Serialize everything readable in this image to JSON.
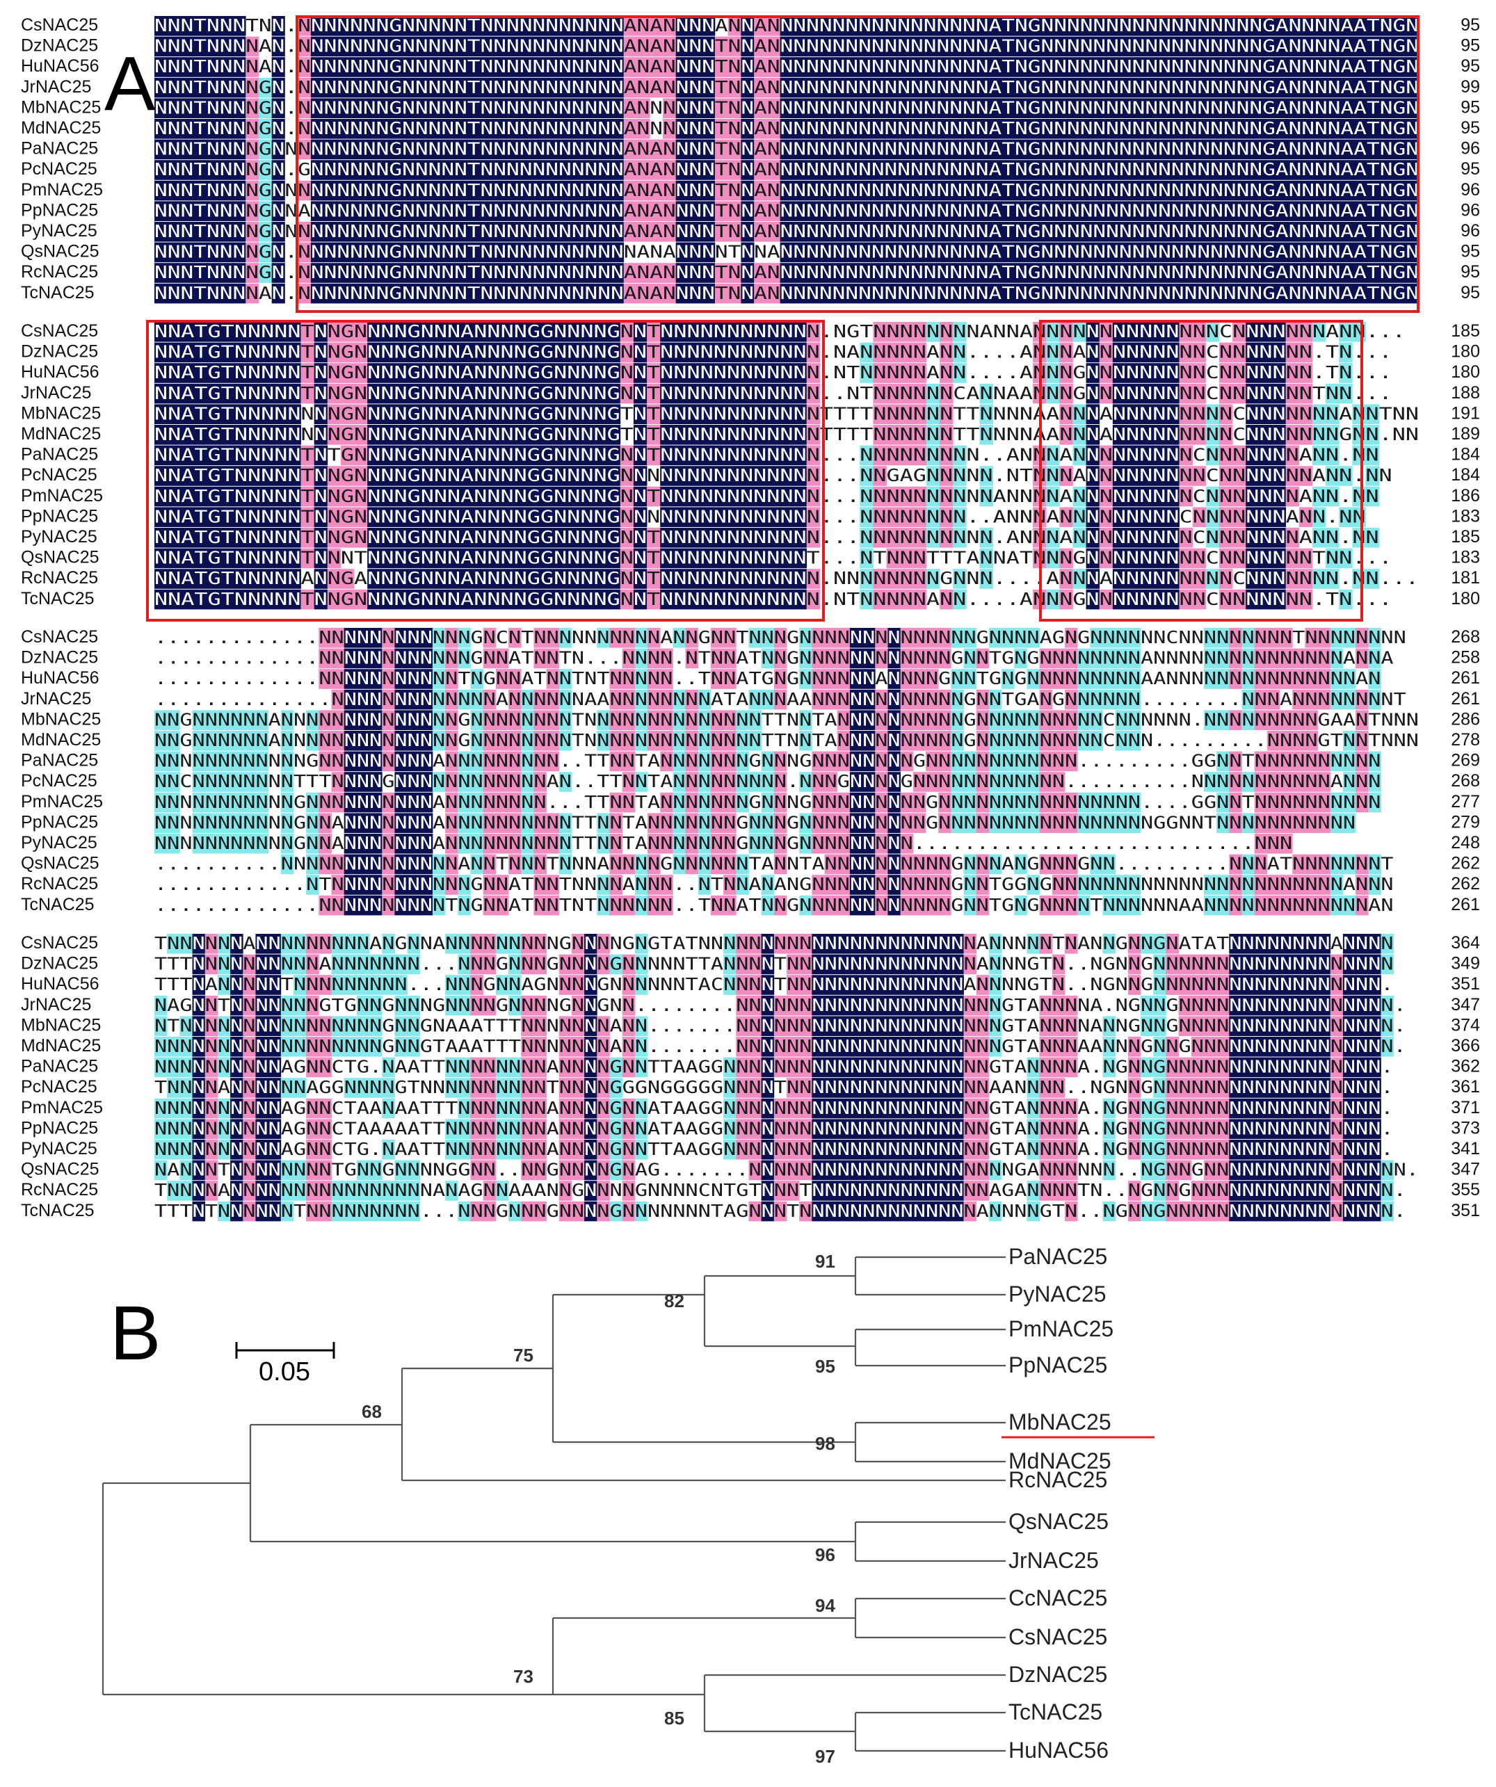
{
  "panel_a_label": "A",
  "panel_b_label": "B",
  "colors": {
    "identical": "#0b1150",
    "conserved_pink": "#f08cc0",
    "conserved_cyan": "#86e8ea",
    "box": "#e51c1c",
    "underline": "#e51c1c"
  },
  "alignment": {
    "blocks": [
      {
        "species": [
          "CsNAC25",
          "DzNAC25",
          "HuNAC56",
          "JrNAC25",
          "MbNAC25",
          "MdNAC25",
          "PaNAC25",
          "PcNAC25",
          "PmNAC25",
          "PpNAC25",
          "PyNAC25",
          "QsNAC25",
          "RcNAC25",
          "TcNAC25"
        ],
        "end_positions": [
          "95",
          "95",
          "95",
          "99",
          "95",
          "95",
          "96",
          "95",
          "96",
          "96",
          "96",
          "95",
          "95",
          "95"
        ],
        "sequences": [
          "NNNTNNNTNN.NNNNNNNGNNNNNTNNNNNNNNNNNANANNNNANNANNNNNNNNNNNNNNNNNATNGNNNNNNNNNNNNNNNNNGANNNNAATNGN",
          "NNNTNNNNAN.NNNNNNNGNNNNNTNNNNNNNNNNNANANNNNTNNANNNNNNNNNNNNNNNNNATNGNNNNNNNNNNNNNNNNNGANNNNAATNGN",
          "NNNTNNNNAN.NNNNNNNGNNNNNTNNNNNNNNNNNANANNNNTNNANNNNNNNNNNNNNNNNNATNGNNNNNNNNNNNNNNNNNGANNNNAATNGN",
          "NNNTNNNNGN.NNNNNNNGNNNNNTNNNNNNNNNNNANANNNNTNNANNNNNNNNNNNNNNNNNATNGNNNNNNNNNNNNNNNNNGANNNNAATNGN",
          "NNNTNNNNGN.NNNNNNNGNNNNNTNNNNNNNNNNNANNNNNNTNNANNNNNNNNNNNNNNNNNATNGNNNNNNNNNNNNNNNNNGANNNNAATNGN",
          "NNNTNNNNGN.NNNNNNNGNNNNNTNNNNNNNNNNNANNNNNNTNNANNNNNNNNNNNNNNNNNATNGNNNNNNNNNNNNNNNNNGANNNNAATNGN",
          "NNNTNNNNGNNNNNNNNNGNNNNNTNNNNNNNNNNNANANNNNTNNANNNNNNNNNNNNNNNNNATNGNNNNNNNNNNNNNNNNNGANNNNAATNGN",
          "NNNTNNNNGN.GNNNNNNGNNNNNTNNNNNNNNNNNANANNNNTNNANNNNNNNNNNNNNNNNNATNGNNNNNNNNNNNNNNNNNGANNNNAATNGN",
          "NNNTNNNNGNNNNNNNNNGNNNNNTNNNNNNNNNNNANANNNNTNNANNNNNNNNNNNNNNNNNATNGNNNNNNNNNNNNNNNNNGANNNNAATNGN",
          "NNNTNNNNGNNANNNNNNGNNNNNTNNNNNNNNNNNANANNNNTNNANNNNNNNNNNNNNNNNNATNGNNNNNNNNNNNNNNNNNGANNNNAATNGN",
          "NNNTNNNNGNNNNNNNNNGNNNNNTNNNNNNNNNNNANANNNNTNNANNNNNNNNNNNNNNNNNATNGNNNNNNNNNNNNNNNNNGANNNNAATNGN",
          "NNNTNNNNGN.NNNNNNNGNNNNNTNNNNNNNNNNNNANANNNNTNNANNNNNNNNNNNNNNNNATNGNNNNNNNNNNNNNNNNNGANNNNAATNGN",
          "NNNTNNNNGN.NNNNNNNGNNNNNTNNNNNNNNNNNANANNNNTNNANNNNNNNNNNNNNNNNNATNGNNNNNNNNNNNNNNNNNGANNNNAATNGN",
          "NNNTNNNNAN.NNNNNNNGNNNNNTNNNNNNNNNNNANANNNNTNNANNNNNNNNNNNNNNNNNATNGNNNNNNNNNNNNNNNNNGANNNNAATNGN"
        ]
      },
      {
        "species": [
          "CsNAC25",
          "DzNAC25",
          "HuNAC56",
          "JrNAC25",
          "MbNAC25",
          "MdNAC25",
          "PaNAC25",
          "PcNAC25",
          "PmNAC25",
          "PpNAC25",
          "PyNAC25",
          "QsNAC25",
          "RcNAC25",
          "TcNAC25"
        ],
        "end_positions": [
          "185",
          "180",
          "180",
          "188",
          "191",
          "189",
          "184",
          "184",
          "186",
          "183",
          "185",
          "183",
          "181",
          "180"
        ],
        "sequences": [
          "NNATGTNNNNNTNNGNNNNGNNNANNNNGGNNNNGNNTNNNNNNNNNNNN.NGTNNNNNNNNANNANNNNNNNNNNNNNNCNNNNNNNANN...",
          "NNATGTNNNNNTNNGNNNNGNNNANNNNGGNNNNGNNTNNNNNNNNNNNN.NANNNNNANN....ANNNANNNNNNNNNCNNNNNNN.TN...",
          "NNATGTNNNNNTNNGNNNNGNNNANNNNGGNNNNGNNTNNNNNNNNNNNN.NTNNNNNANN....ANNNGNNNNNNNNNCNNNNNNN.TN...",
          "NNATGTNNNNNTNNGNNNNGNNNANNNNGGNNNNGNNTNNNNNNNNNNNN..NTNNNNNNCANNAANNNGNNNNNNNNNCNNNNNNNTNN...",
          "NNATGTNNNNNNNNGNNNNGNNNANNNNGGNNNNGTNTNNNNNNNNNNNNTTTTNNNNNNTTNNNNAANNNANNNNNNNNNCNNNNNNNANNTNN",
          "NNATGTNNNNNNNNGNNNNGNNNANNNNGGNNNNGTNTNNNNNNNNNNNNTTTTNNNNNNTTNNNNAANNNANNNNNNNNNCNNNNNNNGNN.NN",
          "NNATGTNNNNNTNTGNNNNGNNNANNNNGGNNNNGNNTNNNNNNNNNNNN...NNNNNNNNN..ANNNANNNNNNNNNCNNNNNNNANN.NN",
          "NNATGTNNNNNTNNGNNNNGNNNANNNNGGNNNNGNNNNNNNNNNNNNNN...NNGAGNNNNN.NTNNNANNNNNNNNNCNNNNNNNANN.NN",
          "NNATGTNNNNNTNNGNNNNGNNNANNNNGGNNNNGNNTNNNNNNNNNNNN...NNNNNNNNNNANNNNANNNNNNNNNCNNNNNNNANN.NN",
          "NNATGTNNNNNTNNGNNNNGNNNANNNNGGNNNNGNNNNNNNNNNNNNNN...NNNNNNNN..ANNNANNNNNNNNNCNNNNNNNANN.NN",
          "NNATGTNNNNNTNNGNNNNGNNNANNNNGGNNNNGNNTNNNNNNNNNNNN...NNNNNNNNNN.ANNNANNNNNNNNNCNNNNNNNANN.NN",
          "NNATGTNNNNNTNNNTNNNGNNNANNNNGGNNNNGNNTNNNNNNNNNNNT...NTNNNTTTANNATNNNGNNNNNNNNNCNNNNNNNTNN...",
          "NNATGTNNNNNANNGANNNGNNNANNNNGGNNNNGNNTNNNNNNNNNNNN.NNNNNNNNGNNN....ANNNANNNNNNNNNCNNNNNNN.NN...",
          "NNATGTNNNNNTNNGNNNNGNNNANNNNGGNNNNGNNTNNNNNNNNNNNN.NTNNNNNANN....ANNNGNNNNNNNNNCNNNNNNN.TN..."
        ]
      },
      {
        "species": [
          "CsNAC25",
          "DzNAC25",
          "HuNAC56",
          "JrNAC25",
          "MbNAC25",
          "MdNAC25",
          "PaNAC25",
          "PcNAC25",
          "PmNAC25",
          "PpNAC25",
          "PyNAC25",
          "QsNAC25",
          "RcNAC25",
          "TcNAC25"
        ],
        "end_positions": [
          "268",
          "258",
          "261",
          "261",
          "286",
          "278",
          "269",
          "268",
          "277",
          "279",
          "248",
          "262",
          "262",
          "261"
        ],
        "sequences": [
          ".............NNNNNNNNNNNNGNCNTNNNNNNNNNNANNGNNTNNNGNNNNNNNNNNNNNNGNNNNAGNGNNNNNNCNNNNNNNNNTNNNNNNNN",
          ".............NNNNNNNNNNNNGNNATNNTN...NNNN.NTNNATNNGNNNNNNNNNNNNGNNTGNGNNNNNNNNANNNNNNNNNNNNNNNANNA",
          ".............NNNNNNNNNNNTNGNNATNNTNTNNNNN..TNNATGNGNNNNNNANNNNGNNTGNGNNNNNNNNNAANNNNNNNNNNNNNNNAN",
          "..............NNNNNNNNNNNNNANNNNNNAANNNNNNNNATANNNAANNNNNNNNNNNNGNNTGANGNNNNNN........NNNANNNNNNNNT",
          "NNGNNNNNNANNNNNNNNNNNNNNGNNNNNNNNTNNNNNNNNNNNNNNTTNNTANNNNNNNNNNGNNNNNNNNNNCNNNNNN.NNNNNNNNNGAANTNNN",
          "NNGNNNNNNANNNNNNNNNNNNNNGNNNNNNNNTNNNNNNNNNNNNNNTTNNTANNNNNNNNNNGNNNNNNNNNNCNNN.........NNNNGTNNTNNN",
          "NNNNNNNNNNNNGNNNNNNNNNANNNNNNNNN..TTNNTANNNNNNNGNNNGNNNNNNNNGNNNNNNNNNNNN.........GGNNTNNNNNNNNNN",
          "NNCNNNNNNNNTTTNNNNGNNNNNNNNNNNNAN..TTNNTANNNNNNNNN.NNNGNNNNGNNNNNNNNNNNN..........NNNNNNNNNNNANNN",
          "NNNNNNNNNNNGNNNNNNNNNNANNNNNNNN...TTNNTANNNNNNNGNNNGNNNNNNNNNGNNNNNNNNNNNNNNNN....GGNNTNNNNNNNNNN",
          "NNNNNNNNNNNGNNANNNNNNNANNNNNNNNNNTTNNTANNNNNNNGNNNGNNNNNNNNNNGNNNNNNNNNNNNNNNNNGGNNTNNNNNNNNNNN",
          "NNNNNNNNNNNGNNANNNNNNNANNNNNNNNNNTTNNTANNNNNNNGNNNGNNNNNNNNN...........................NNN",
          "..........NNNNNNNNNNNNNNANNTNNNTNNNANNNNGNNNNNNTANNTANNNNNNNNNNGNNNANGNNNGNN.........NNNATNNNNNNNT",
          "............NTNNNNNNNNNNNGNNATNNTNNNNANNN..NTNNANANGNNNNNNNNNNNGNNTGGNGNNNNNNNNNNNNNNNNNNNNNNNANNN",
          ".............NNNNNNNNNNTNGNNATNNTNTNNNNNN..TNNATNNGNNNNNNNNNNNNGNNTGNGNNNNTNNNNNNAANNNNNNNNNNNNNAN"
        ]
      },
      {
        "species": [
          "CsNAC25",
          "DzNAC25",
          "HuNAC56",
          "JrNAC25",
          "MbNAC25",
          "MdNAC25",
          "PaNAC25",
          "PcNAC25",
          "PmNAC25",
          "PpNAC25",
          "PyNAC25",
          "QsNAC25",
          "RcNAC25",
          "TcNAC25"
        ],
        "end_positions": [
          "364",
          "349",
          "351",
          "347",
          "374",
          "366",
          "362",
          "361",
          "371",
          "373",
          "341",
          "347",
          "355",
          "351"
        ],
        "sequences": [
          "TNNNNNNANNNNNNNNNANGNNANNNNNNNNNGNNNNGNGTATNNNNNNNNNNNNNNNNNNNNNNANNNNNTNANNGNNGNATATNNNNNNNNANNNN",
          "TTTNNNNNNNNNNANNNNNNN...NNNGNNNGNNNNGNNNNNTTANNNNTNNNNNNNNNNNNNNNANNNGTN..NGNNGNNNNNNNNNNNNNNNNNNN",
          "TTTNANNNNNTNNNNNNNNN...NNNGNNAGNNNNGNNNNNNTACNNNNTNNNNNNNNNNNNNNANNNNGTN..NGNNGNNNNNNNNNNNNNNNNNN.",
          "NAGNNTNNNNNNNGTGNNGNNNGNNNNGNNNNGNNGNN........NNNNNNNNNNNNNNNNNNNNNGTANNNNA.NGNNGNNNNNNNNNNNNNNNNN.",
          "NTNNNNNNNNNNNNNNNNGNNGNAAATTTNNNNNNNANN.......NNNNNNNNNNNNNNNNNNNNNGTANNNNANNGNNGNNNNNNNNNNNNNNNNN.",
          "NNNNNNNNNNNNNNNNNNGNNGTAAATTTNNNNNNNANN.......NNNNNNNNNNNNNNNNNNNNNGTANNNAANNNGNNGNNNNNNNNNNNNNNNN.",
          "NNNNNNNNNNAGNNCTG.NAATTNNNNNNNNANNNNGNNTTAAGGNNNNNNNNNNNNNNNNNNNNNGTANNNNA.NGNNGNNNNNNNNNNNNNNNNN.",
          "TNNNNANNNNNNAGGNNNNGTNNNNNNNNNNTNNNNGGGNGGGGGNNNNTNNNNNNNNNNNNNNNNAANNNN..NGNNGNNNNNNNNNNNNNNNNNN.",
          "NNNNNNNNNNAGNNCTAANAATTTNNNNNNNANNNNGNNATAAGGNNNNNNNNNNNNNNNNNNNNNGTANNNNA.NGNNGNNNNNNNNNNNNNNNNN.",
          "NNNNNNNNNNAGNNCTAAAAATTNNNNNNNNANNNNGNNATAAGGNNNNNNNNNNNNNNNNNNNNNGTANNNNA.NGNNGNNNNNNNNNNNNNNNNN.",
          "NNNNNNNNNNAGNNCTG.NAATTNNNNNNNNANNNNGNNTTAAGGNNNNNNNNNNNNNNNNNNNNNGTANNNNA.NGNNGNNNNNNNNNNNNNNNNN.",
          "NANNNTNNNNNNNNTGNNGNNNNGGNN..NNGNNNNGNAG.......NNNNNNNNNNNNNNNNNNNNNGANNNNNN..NGNNGNNNNNNNNNNNNNNNN.",
          "TNNNNANNNNNNNNNNNNNNNNANAGNNAAANNGNNNNGNNNNCNTGTNNNTNNNNNNNNNNNNNNAGANNNNTN..NGNNGNNNNNNNNNNNNNNNN.",
          "TTTNTNNNNNNTNNNNNNNNN...NNNGNNNGNNNNGNNNNNNNTAGNNNTNNNNNNNNNNNNNNANNNNGTN..NGNNGNNNNNNNNNNNNNNNNNN."
        ]
      }
    ]
  },
  "tree": {
    "scale_label": "0.05",
    "leaves": [
      "PaNAC25",
      "PyNAC25",
      "PmNAC25",
      "PpNAC25",
      "MbNAC25",
      "MdNAC25",
      "RcNAC25",
      "QsNAC25",
      "JrNAC25",
      "CcNAC25",
      "CsNAC25",
      "DzNAC25",
      "TcNAC25",
      "HuNAC56"
    ],
    "highlighted_leaf": "MbNAC25",
    "bootstrap": {
      "pa_py": "91",
      "pa_pm": "82",
      "pm_pp": "95",
      "rosaceae": "75",
      "mb_md": "98",
      "rosaceae_rc": "68",
      "qs_jr": "96",
      "cc_cs": "94",
      "cc_dz": "73",
      "dz_tc": "85",
      "tc_hu": "97"
    }
  }
}
